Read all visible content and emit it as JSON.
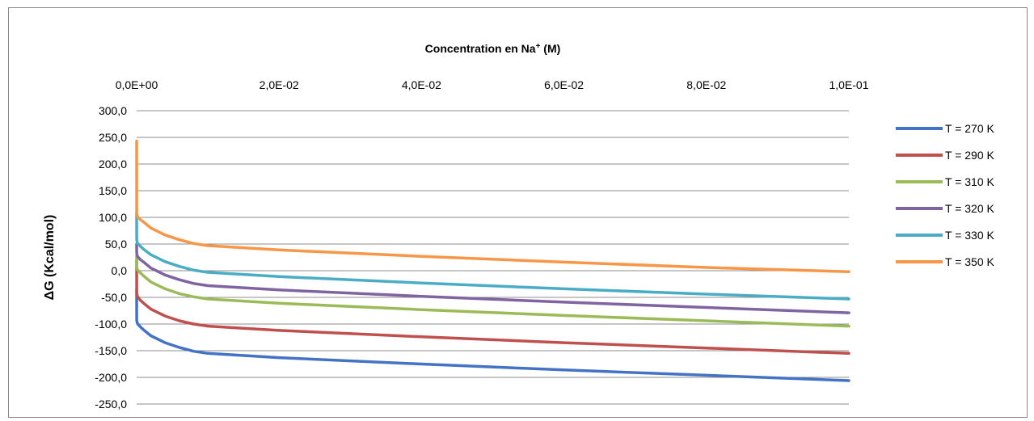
{
  "chart_data": {
    "type": "line",
    "title": "",
    "xlabel": "Concentration en Na",
    "xlabel_sup": "+",
    "xlabel_suffix": " (M)",
    "ylabel": "ΔG (Kcal/mol)",
    "x_axis_position": "top",
    "xlim": [
      0,
      0.1
    ],
    "ylim": [
      -250,
      300
    ],
    "x_ticks": [
      0,
      0.02,
      0.04,
      0.06,
      0.08,
      0.1
    ],
    "x_tick_labels": [
      "0,0E+00",
      "2,0E-02",
      "4,0E-02",
      "6,0E-02",
      "8,0E-02",
      "1,0E-01"
    ],
    "y_ticks": [
      300,
      250,
      200,
      150,
      100,
      50,
      0,
      -50,
      -100,
      -150,
      -200,
      -250
    ],
    "y_tick_labels": [
      "300,0",
      "250,0",
      "200,0",
      "150,0",
      "100,0",
      "50,0",
      "0,0",
      "-50,0",
      "-100,0",
      "-150,0",
      "-200,0",
      "-250,0"
    ],
    "grid": "horizontal",
    "legend_position": "right",
    "x": [
      0,
      1e-05,
      0.0001,
      0.0005,
      0.001,
      0.002,
      0.004,
      0.006,
      0.008,
      0.01,
      0.02,
      0.04,
      0.06,
      0.08,
      0.1
    ],
    "series": [
      {
        "name": "T = 270  K",
        "color": "#4472C4",
        "values": [
          -35,
          -93,
          -99,
          -105,
          -111,
          -122,
          -135,
          -144,
          -151,
          -155,
          -163,
          -175,
          -186,
          -196,
          -206
        ]
      },
      {
        "name": "T = 290  K",
        "color": "#C0504D",
        "values": [
          20,
          -42,
          -48,
          -55,
          -61,
          -72,
          -85,
          -94,
          -100,
          -104,
          -112,
          -124,
          -135,
          -145,
          -155
        ]
      },
      {
        "name": "T = 310  K",
        "color": "#9BBB59",
        "values": [
          28,
          7,
          2,
          -4,
          -10,
          -21,
          -34,
          -43,
          -49,
          -53,
          -61,
          -73,
          -84,
          -94,
          -104
        ]
      },
      {
        "name": "T = 320  K",
        "color": "#8064A2",
        "values": [
          50,
          33,
          27,
          21,
          16,
          5,
          -8,
          -17,
          -24,
          -28,
          -36,
          -48,
          -59,
          -69,
          -79
        ]
      },
      {
        "name": "T = 330  K",
        "color": "#4BACC6",
        "values": [
          110,
          58,
          52,
          46,
          40,
          30,
          17,
          8,
          1,
          -3,
          -11,
          -23,
          -34,
          -44,
          -53
        ]
      },
      {
        "name": "T = 350  K",
        "color": "#F79646",
        "values": [
          243,
          108,
          102,
          96,
          91,
          80,
          67,
          58,
          51,
          47,
          39,
          27,
          16,
          6,
          -2
        ]
      }
    ]
  }
}
